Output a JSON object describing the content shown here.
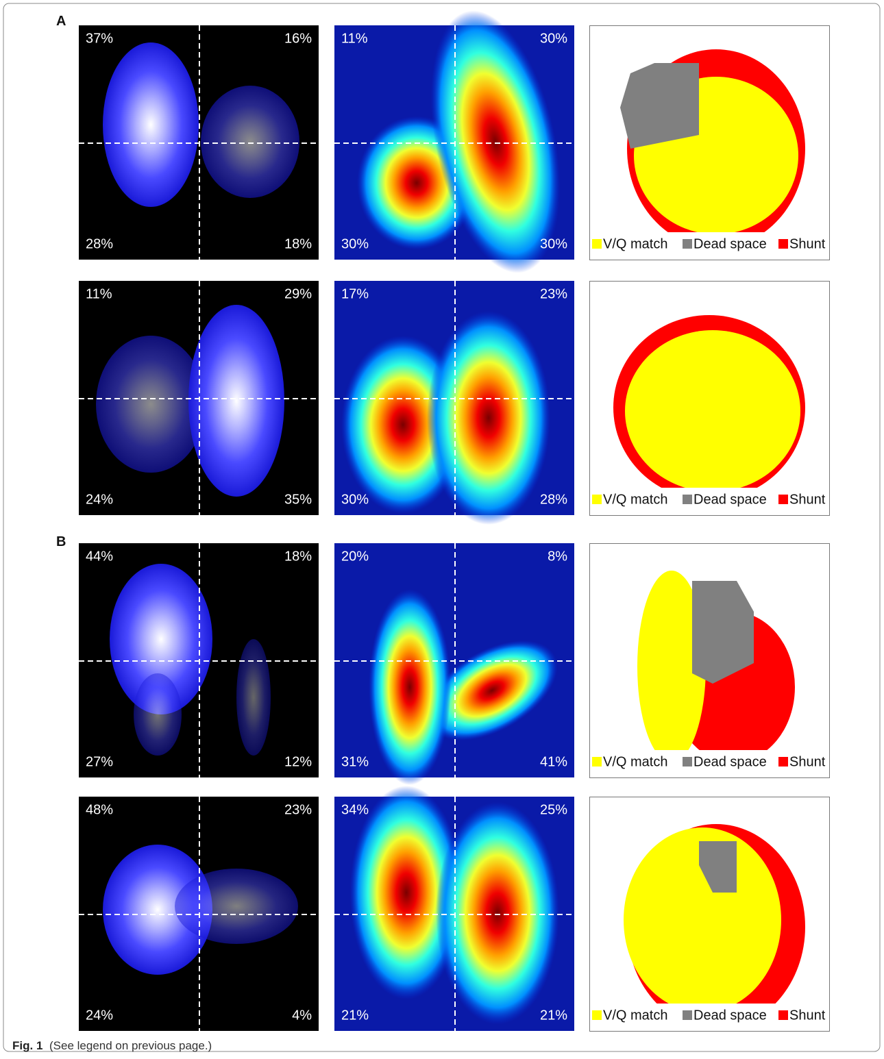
{
  "figure": {
    "panels": [
      {
        "label": "A",
        "rows": [
          {
            "ventilation": [
              "37%",
              "16%",
              "28%",
              "18%"
            ],
            "perfusion": [
              "11%",
              "30%",
              "30%",
              "30%"
            ],
            "legend": [
              "V/Q match",
              "Dead space",
              "Shunt"
            ]
          },
          {
            "ventilation": [
              "11%",
              "29%",
              "24%",
              "35%"
            ],
            "perfusion": [
              "17%",
              "23%",
              "30%",
              "28%"
            ],
            "legend": [
              "V/Q match",
              "Dead space",
              "Shunt"
            ]
          }
        ]
      },
      {
        "label": "B",
        "rows": [
          {
            "ventilation": [
              "44%",
              "18%",
              "27%",
              "12%"
            ],
            "perfusion": [
              "20%",
              "8%",
              "31%",
              "41%"
            ],
            "legend": [
              "V/Q match",
              "Dead space",
              "Shunt"
            ]
          },
          {
            "ventilation": [
              "48%",
              "23%",
              "24%",
              "4%"
            ],
            "perfusion": [
              "34%",
              "25%",
              "21%",
              "21%"
            ],
            "legend": [
              "V/Q match",
              "Dead space",
              "Shunt"
            ]
          }
        ]
      }
    ]
  },
  "caption": {
    "label": "Fig. 1",
    "text": "(See legend on previous page.)"
  }
}
